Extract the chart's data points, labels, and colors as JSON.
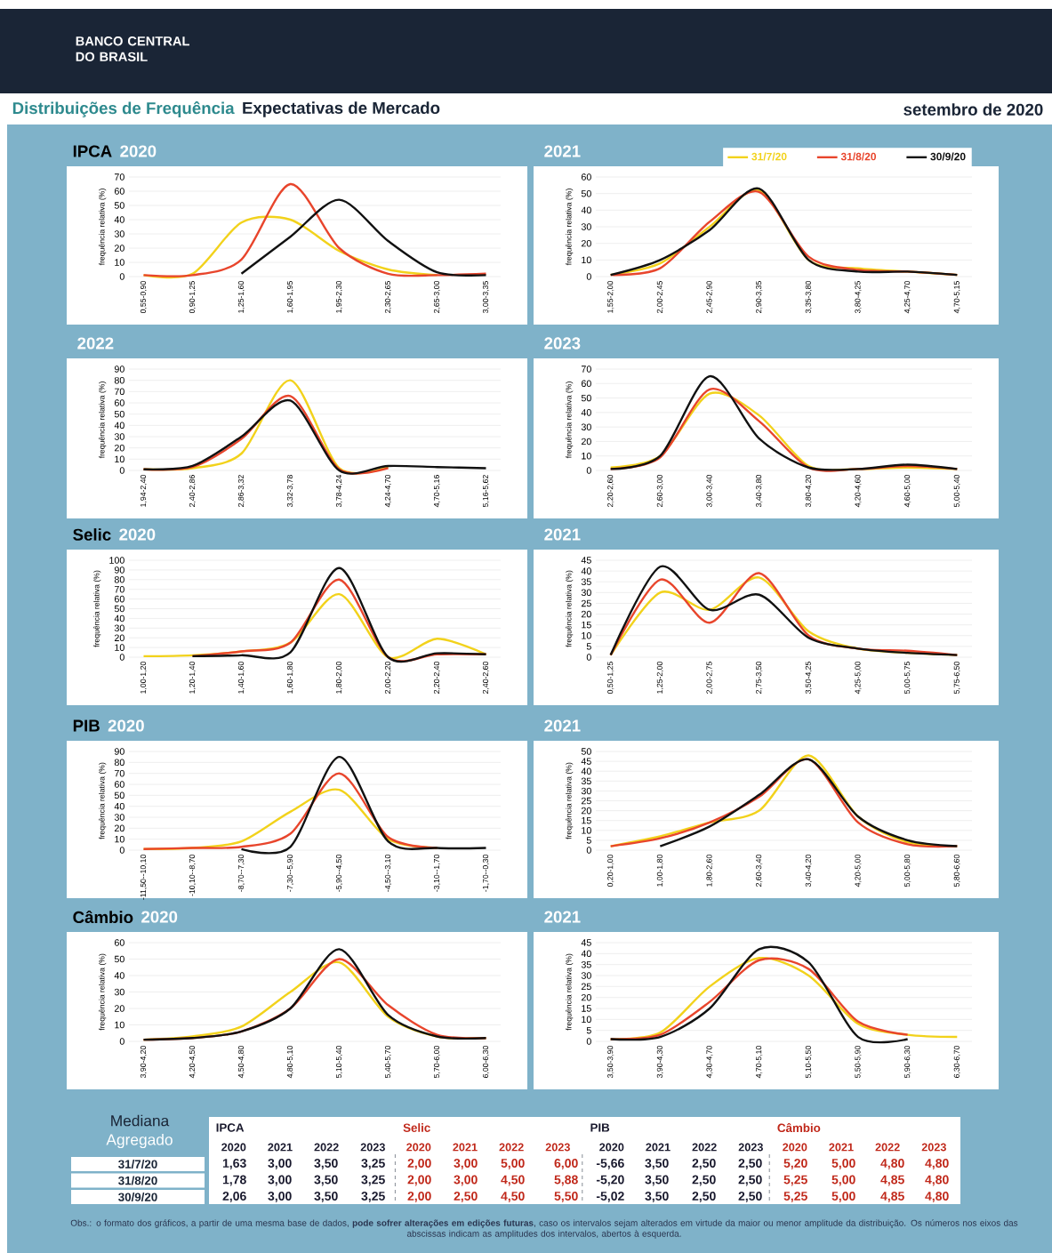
{
  "chart_data": [
    {
      "type": "other",
      "title": "Distribuições de Frequência",
      "subtitle": "Expectativas de Mercado",
      "annotations": [
        "BANCO CENTRAL DO BRASIL",
        "setembro de 2020"
      ]
    },
    {
      "type": "line",
      "title": "IPCA",
      "subtitle": "2020",
      "ylabel": "frequência relativa (%)",
      "grid": "y",
      "ylim": [
        0,
        70
      ],
      "yticks": [
        0,
        10,
        20,
        30,
        40,
        50,
        60,
        70
      ],
      "categories": [
        "0,55-0,90",
        "0,90-1,25",
        "1,25-1,60",
        "1,60-1,95",
        "1,95-2,30",
        "2,30-2,65",
        "2,65-3,00",
        "3,00-3,35"
      ],
      "series": [
        {
          "color": "#f2d21b",
          "values": [
            1,
            2,
            38,
            40,
            18,
            5,
            1,
            null
          ]
        },
        {
          "color": "#e8452c",
          "values": [
            1,
            1,
            12,
            65,
            20,
            2,
            1,
            2
          ]
        },
        {
          "color": "#111111",
          "values": [
            null,
            null,
            2,
            28,
            54,
            25,
            3,
            1
          ]
        }
      ]
    },
    {
      "type": "line",
      "title": "2021",
      "ylabel": "frequência relativa (%)",
      "grid": "y",
      "legend": "top right",
      "ylim": [
        0,
        60
      ],
      "yticks": [
        0,
        10,
        20,
        30,
        40,
        50,
        60
      ],
      "categories": [
        "1,55-2,00",
        "2,00-2,45",
        "2,45-2,90",
        "2,90-3,35",
        "3,35-3,80",
        "3,80-4,25",
        "4,25-4,70",
        "4,70-5,15"
      ],
      "series": [
        {
          "name": "31/7/20",
          "color": "#f2d21b",
          "values": [
            1,
            8,
            30,
            52,
            10,
            5,
            3,
            1
          ]
        },
        {
          "name": "31/8/20",
          "color": "#e8452c",
          "values": [
            1,
            5,
            33,
            51,
            12,
            4,
            3,
            1
          ]
        },
        {
          "name": "30/9/20",
          "color": "#111111",
          "values": [
            1,
            10,
            28,
            53,
            10,
            3,
            3,
            1
          ]
        }
      ]
    },
    {
      "type": "line",
      "title": "2022",
      "ylabel": "frequência relativa (%)",
      "grid": "y",
      "ylim": [
        0,
        90
      ],
      "yticks": [
        0,
        10,
        20,
        30,
        40,
        50,
        60,
        70,
        80,
        90
      ],
      "categories": [
        "1,94-2,40",
        "2,40-2,86",
        "2,86-3,32",
        "3,32-3,78",
        "3,78-4,24",
        "4,24-4,70",
        "4,70-5,16",
        "5,16-5,62"
      ],
      "series": [
        {
          "color": "#f2d21b",
          "values": [
            1,
            2,
            15,
            80,
            2,
            3,
            null,
            null
          ]
        },
        {
          "color": "#e8452c",
          "values": [
            1,
            3,
            28,
            66,
            1,
            2,
            null,
            null
          ]
        },
        {
          "color": "#111111",
          "values": [
            1,
            4,
            30,
            62,
            0,
            4,
            3,
            2
          ]
        }
      ]
    },
    {
      "type": "line",
      "title": "2023",
      "ylabel": "frequência relativa (%)",
      "grid": "y",
      "ylim": [
        0,
        70
      ],
      "yticks": [
        0,
        10,
        20,
        30,
        40,
        50,
        60,
        70
      ],
      "categories": [
        "2,20-2,60",
        "2,60-3,00",
        "3,00-3,40",
        "3,40-3,80",
        "3,80-4,20",
        "4,20-4,60",
        "4,60-5,00",
        "5,00-5,40"
      ],
      "series": [
        {
          "color": "#f2d21b",
          "values": [
            2,
            10,
            53,
            38,
            3,
            1,
            2,
            1
          ]
        },
        {
          "color": "#e8452c",
          "values": [
            1,
            9,
            56,
            34,
            2,
            1,
            3,
            1
          ]
        },
        {
          "color": "#111111",
          "values": [
            1,
            10,
            65,
            22,
            2,
            1,
            4,
            1
          ]
        }
      ]
    },
    {
      "type": "line",
      "title": "Selic",
      "subtitle": "2020",
      "ylabel": "frequência relativa (%)",
      "grid": "y",
      "ylim": [
        0,
        100
      ],
      "yticks": [
        0,
        10,
        20,
        30,
        40,
        50,
        60,
        70,
        80,
        90,
        100
      ],
      "categories": [
        "1,00-1,20",
        "1,20-1,40",
        "1,40-1,60",
        "1,60-1,80",
        "1,80-2,00",
        "2,00-2,20",
        "2,20-2,40",
        "2,40-2,60"
      ],
      "series": [
        {
          "color": "#f2d21b",
          "values": [
            1,
            2,
            6,
            15,
            65,
            0,
            19,
            3
          ]
        },
        {
          "color": "#e8452c",
          "values": [
            null,
            1,
            6,
            15,
            80,
            0,
            3,
            3
          ]
        },
        {
          "color": "#111111",
          "values": [
            null,
            1,
            2,
            5,
            92,
            0,
            4,
            3
          ]
        }
      ]
    },
    {
      "type": "line",
      "title": "2021",
      "ylabel": "frequência relativa (%)",
      "grid": "y",
      "ylim": [
        0,
        45
      ],
      "yticks": [
        0,
        5,
        10,
        15,
        20,
        25,
        30,
        35,
        40,
        45
      ],
      "categories": [
        "0,50-1,25",
        "1,25-2,00",
        "2,00-2,75",
        "2,75-3,50",
        "3,50-4,25",
        "4,25-5,00",
        "5,00-5,75",
        "5,75-6,50"
      ],
      "series": [
        {
          "color": "#f2d21b",
          "values": [
            1,
            30,
            22,
            37,
            12,
            4,
            2,
            1
          ]
        },
        {
          "color": "#e8452c",
          "values": [
            1,
            36,
            16,
            39,
            10,
            4,
            3,
            1
          ]
        },
        {
          "color": "#111111",
          "values": [
            1,
            42,
            22,
            29,
            9,
            4,
            2,
            1
          ]
        }
      ]
    },
    {
      "type": "line",
      "title": "PIB",
      "subtitle": "2020",
      "ylabel": "frequência relativa (%)",
      "grid": "y",
      "ylim": [
        0,
        90
      ],
      "yticks": [
        0,
        10,
        20,
        30,
        40,
        50,
        60,
        70,
        80,
        90
      ],
      "categories": [
        "-11,50--10,10",
        "-10,10--8,70",
        "-8,70--7,30",
        "-7,30--5,90",
        "-5,90--4,50",
        "-4,50--3,10",
        "-3,10--1,70",
        "-1,70--0,30"
      ],
      "series": [
        {
          "color": "#f2d21b",
          "values": [
            1,
            2,
            8,
            35,
            55,
            10,
            2,
            null
          ]
        },
        {
          "color": "#e8452c",
          "values": [
            1,
            2,
            3,
            15,
            70,
            12,
            2,
            null
          ]
        },
        {
          "color": "#111111",
          "values": [
            null,
            null,
            1,
            3,
            85,
            8,
            2,
            2
          ]
        }
      ]
    },
    {
      "type": "line",
      "title": "2021",
      "ylabel": "frequência relativa (%)",
      "grid": "y",
      "ylim": [
        0,
        50
      ],
      "yticks": [
        0,
        5,
        10,
        15,
        20,
        25,
        30,
        35,
        40,
        45,
        50
      ],
      "categories": [
        "0,20-1,00",
        "1,00-1,80",
        "1,80-2,60",
        "2,60-3,40",
        "3,40-4,20",
        "4,20-5,00",
        "5,00-5,80",
        "5,80-6,60"
      ],
      "series": [
        {
          "color": "#f2d21b",
          "values": [
            2,
            7,
            14,
            20,
            48,
            17,
            4,
            2
          ]
        },
        {
          "color": "#e8452c",
          "values": [
            2,
            6,
            14,
            27,
            46,
            14,
            3,
            2
          ]
        },
        {
          "color": "#111111",
          "values": [
            null,
            2,
            12,
            28,
            46,
            17,
            5,
            2
          ]
        }
      ]
    },
    {
      "type": "line",
      "title": "Câmbio",
      "subtitle": "2020",
      "ylabel": "frequência relativa (%)",
      "grid": "y",
      "ylim": [
        0,
        60
      ],
      "yticks": [
        0,
        10,
        20,
        30,
        40,
        50,
        60
      ],
      "categories": [
        "3,90-4,20",
        "4,20-4,50",
        "4,50-4,80",
        "4,80-5,10",
        "5,10-5,40",
        "5,40-5,70",
        "5,70-6,00",
        "6,00-6,30"
      ],
      "series": [
        {
          "color": "#f2d21b",
          "values": [
            1,
            3,
            9,
            30,
            48,
            15,
            3,
            2
          ]
        },
        {
          "color": "#e8452c",
          "values": [
            1,
            2,
            6,
            20,
            50,
            22,
            4,
            2
          ]
        },
        {
          "color": "#111111",
          "values": [
            1,
            2,
            6,
            20,
            56,
            16,
            3,
            2
          ]
        }
      ]
    },
    {
      "type": "line",
      "title": "2021",
      "ylabel": "frequência relativa (%)",
      "grid": "y",
      "ylim": [
        0,
        45
      ],
      "yticks": [
        0,
        5,
        10,
        15,
        20,
        25,
        30,
        35,
        40,
        45
      ],
      "categories": [
        "3,50-3,90",
        "3,90-4,30",
        "4,30-4,70",
        "4,70-5,10",
        "5,10-5,50",
        "5,50-5,90",
        "5,90-6,30",
        "6,30-6,70"
      ],
      "series": [
        {
          "color": "#f2d21b",
          "values": [
            1,
            4,
            25,
            38,
            30,
            8,
            3,
            2
          ]
        },
        {
          "color": "#e8452c",
          "values": [
            1,
            3,
            18,
            37,
            33,
            9,
            3,
            null
          ]
        },
        {
          "color": "#111111",
          "values": [
            1,
            2,
            15,
            42,
            36,
            2,
            1,
            null
          ]
        }
      ]
    },
    {
      "type": "other",
      "annotations": [
        "Mediana",
        "Agregado",
        "IPCA",
        "Selic",
        "PIB",
        "Câmbio",
        "Obs.: o formato dos gráficos, a partir de uma mesma base de dados, **pode sofrer alterações em edições futuras**, caso os intervalos sejam alterados em virtude da maior ou menor amplitude da distribuição. Os números nos eixos das abscissas indicam as amplitudes dos intervalos, abertos à esquerda."
      ],
      "colors": [
        "#1a1a2e",
        "#1a1a2e",
        "#1a1a2e",
        "#1a1a2e",
        "#c0281a",
        "#c0281a",
        "#c0281a",
        "#c0281a",
        "#1a1a2e",
        "#1a1a2e",
        "#1a1a2e",
        "#1a1a2e",
        "#c0281a",
        "#c0281a",
        "#c0281a",
        "#c0281a"
      ],
      "y_categories": [
        "31/7/20",
        "31/8/20",
        "30/9/20"
      ],
      "cell_labels": [
        [
          "2020 2021 2022 2023",
          "2020 2021 2022 2023",
          "2020 2021 2022 2023",
          "2020 2021 2022 2023"
        ],
        [
          "1,63",
          "3,00",
          "3,50",
          "3,25",
          "2,00",
          "3,00",
          "5,00",
          "6,00",
          "-5,66",
          "3,50",
          "2,50",
          "2,50",
          "5,20",
          "5,00",
          "4,80",
          "4,80"
        ],
        [
          "1,78",
          "3,00",
          "3,50",
          "3,25",
          "2,00",
          "3,00",
          "4,50",
          "5,88",
          "-5,20",
          "3,50",
          "2,50",
          "2,50",
          "5,25",
          "5,00",
          "4,85",
          "4,80"
        ],
        [
          "2,06",
          "3,00",
          "3,50",
          "3,25",
          "2,00",
          "2,50",
          "4,50",
          "5,50",
          "-5,02",
          "3,50",
          "2,50",
          "2,50",
          "5,25",
          "5,00",
          "4,85",
          "4,80"
        ]
      ]
    }
  ]
}
